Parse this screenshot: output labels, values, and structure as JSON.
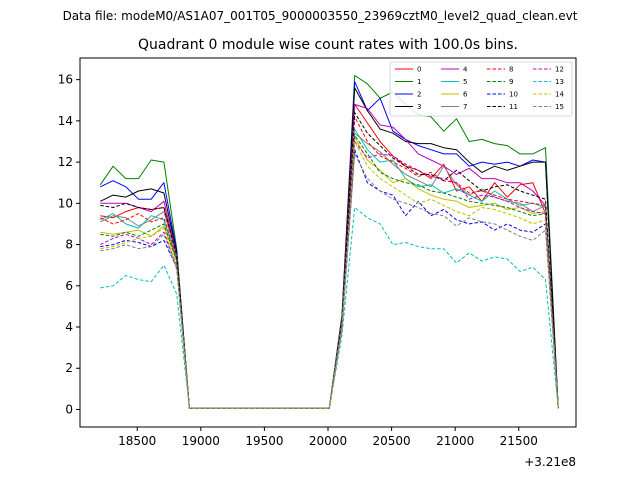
{
  "suptitle": "Data file: modeM0/AS1A07_001T05_9000003550_23969cztM0_level2_quad_clean.evt",
  "chart_data": {
    "type": "line",
    "title": "Quadrant 0 module wise count rates with 100.0s bins.",
    "xlabel": "",
    "ylabel": "",
    "x_offset_label": "+3.21e8",
    "xlim": [
      18050,
      21950
    ],
    "ylim": [
      -0.85,
      17.05
    ],
    "xticks": [
      18500,
      19000,
      19500,
      20000,
      20500,
      21000,
      21500
    ],
    "xtick_labels": [
      "18500",
      "19000",
      "19500",
      "20000",
      "20500",
      "21000",
      "21500"
    ],
    "yticks": [
      0,
      2,
      4,
      6,
      8,
      10,
      12,
      14,
      16
    ],
    "ytick_labels": [
      "0",
      "2",
      "4",
      "6",
      "8",
      "10",
      "12",
      "14",
      "16"
    ],
    "grid": false,
    "legend_position": "top-right",
    "x": [
      18210,
      18310,
      18410,
      18510,
      18610,
      18710,
      18810,
      18910,
      19010,
      19110,
      19210,
      19310,
      19410,
      19510,
      19610,
      19710,
      19810,
      19910,
      20010,
      20110,
      20210,
      20310,
      20410,
      20510,
      20610,
      20710,
      20810,
      20910,
      21010,
      21110,
      21210,
      21310,
      21410,
      21510,
      21610,
      21710,
      21810
    ],
    "series": [
      {
        "name": "0",
        "color": "#ff0000",
        "dash": "solid",
        "values": [
          9.4,
          9.3,
          9.6,
          9.8,
          9.7,
          9.8,
          7.5,
          0.05,
          0.05,
          0.05,
          0.05,
          0.05,
          0.05,
          0.05,
          0.05,
          0.05,
          0.05,
          0.05,
          0.05,
          4.2,
          14.8,
          13.9,
          13.0,
          12.3,
          11.8,
          11.6,
          11.2,
          11.9,
          10.6,
          10.8,
          10.1,
          11.0,
          10.3,
          10.9,
          11.0,
          9.5,
          0.05
        ]
      },
      {
        "name": "1",
        "color": "#008000",
        "dash": "solid",
        "values": [
          10.9,
          11.8,
          11.2,
          11.2,
          12.1,
          12.0,
          7.8,
          0.05,
          0.05,
          0.05,
          0.05,
          0.05,
          0.05,
          0.05,
          0.05,
          0.05,
          0.05,
          0.05,
          0.05,
          4.6,
          16.2,
          15.8,
          15.1,
          15.4,
          14.8,
          14.3,
          14.2,
          13.5,
          14.1,
          13.0,
          13.1,
          12.9,
          12.8,
          12.4,
          12.4,
          12.7,
          0.05
        ]
      },
      {
        "name": "2",
        "color": "#0000ff",
        "dash": "solid",
        "values": [
          10.8,
          11.1,
          10.8,
          10.2,
          10.2,
          11.0,
          7.7,
          0.05,
          0.05,
          0.05,
          0.05,
          0.05,
          0.05,
          0.05,
          0.05,
          0.05,
          0.05,
          0.05,
          0.05,
          4.5,
          15.9,
          14.5,
          15.1,
          13.5,
          13.1,
          12.8,
          12.6,
          12.4,
          12.4,
          11.8,
          12.0,
          11.9,
          12.0,
          11.8,
          12.1,
          12.0,
          0.05
        ]
      },
      {
        "name": "3",
        "color": "#000000",
        "dash": "solid",
        "values": [
          10.1,
          10.4,
          10.3,
          10.6,
          10.7,
          10.5,
          7.6,
          0.05,
          0.05,
          0.05,
          0.05,
          0.05,
          0.05,
          0.05,
          0.05,
          0.05,
          0.05,
          0.05,
          0.05,
          4.5,
          15.6,
          14.5,
          13.6,
          13.4,
          13.0,
          12.9,
          12.9,
          12.7,
          12.6,
          12.0,
          11.5,
          11.8,
          11.6,
          11.8,
          12.0,
          12.0,
          0.05
        ]
      },
      {
        "name": "4",
        "color": "#bf00bf",
        "dash": "solid",
        "values": [
          10.0,
          10.0,
          10.0,
          9.8,
          9.6,
          10.1,
          7.5,
          0.05,
          0.05,
          0.05,
          0.05,
          0.05,
          0.05,
          0.05,
          0.05,
          0.05,
          0.05,
          0.05,
          0.05,
          4.4,
          14.8,
          14.6,
          13.8,
          13.7,
          13.1,
          12.4,
          12.1,
          11.8,
          11.4,
          11.7,
          11.2,
          11.2,
          11.0,
          11.0,
          10.6,
          9.9,
          0.05
        ]
      },
      {
        "name": "5",
        "color": "#00bfbf",
        "dash": "solid",
        "values": [
          9.2,
          9.5,
          9.0,
          8.8,
          9.4,
          9.2,
          7.3,
          0.05,
          0.05,
          0.05,
          0.05,
          0.05,
          0.05,
          0.05,
          0.05,
          0.05,
          0.05,
          0.05,
          0.05,
          4.3,
          13.6,
          12.6,
          12.0,
          12.1,
          11.2,
          10.8,
          10.9,
          10.5,
          10.7,
          10.4,
          10.1,
          10.6,
          10.2,
          9.9,
          10.0,
          9.8,
          0.05
        ]
      },
      {
        "name": "6",
        "color": "#bfbf00",
        "dash": "solid",
        "values": [
          8.6,
          8.5,
          8.6,
          8.7,
          8.4,
          8.9,
          7.2,
          0.05,
          0.05,
          0.05,
          0.05,
          0.05,
          0.05,
          0.05,
          0.05,
          0.05,
          0.05,
          0.05,
          0.05,
          4.2,
          13.2,
          12.1,
          11.6,
          11.0,
          11.2,
          10.7,
          10.4,
          10.2,
          10.1,
          9.8,
          9.9,
          10.0,
          9.7,
          9.8,
          9.5,
          9.6,
          0.05
        ]
      },
      {
        "name": "7",
        "color": "#808080",
        "dash": "solid",
        "values": [
          9.1,
          9.4,
          9.3,
          8.9,
          9.2,
          9.6,
          7.4,
          0.05,
          0.05,
          0.05,
          0.05,
          0.05,
          0.05,
          0.05,
          0.05,
          0.05,
          0.05,
          0.05,
          0.05,
          4.3,
          13.4,
          12.9,
          12.5,
          11.9,
          11.4,
          11.1,
          10.8,
          11.8,
          10.9,
          10.4,
          10.7,
          10.3,
          10.1,
          10.0,
          9.6,
          9.9,
          0.05
        ]
      },
      {
        "name": "8",
        "color": "#ff0000",
        "dash": "dash",
        "values": [
          9.3,
          9.0,
          9.2,
          9.5,
          9.1,
          9.3,
          7.3,
          0.05,
          0.05,
          0.05,
          0.05,
          0.05,
          0.05,
          0.05,
          0.05,
          0.05,
          0.05,
          0.05,
          0.05,
          4.2,
          14.2,
          13.0,
          12.3,
          12.0,
          11.7,
          11.3,
          11.5,
          11.1,
          11.0,
          10.5,
          10.6,
          10.4,
          10.2,
          10.1,
          10.0,
          9.9,
          0.05
        ]
      },
      {
        "name": "9",
        "color": "#008000",
        "dash": "dash",
        "values": [
          8.5,
          8.4,
          8.6,
          8.4,
          8.7,
          9.0,
          7.2,
          0.05,
          0.05,
          0.05,
          0.05,
          0.05,
          0.05,
          0.05,
          0.05,
          0.05,
          0.05,
          0.05,
          0.05,
          4.1,
          13.3,
          12.4,
          11.5,
          11.2,
          11.0,
          10.9,
          10.6,
          10.5,
          10.3,
          10.1,
          10.0,
          9.9,
          9.8,
          9.6,
          9.4,
          9.5,
          0.05
        ]
      },
      {
        "name": "10",
        "color": "#0000ff",
        "dash": "dash",
        "values": [
          7.9,
          8.0,
          8.2,
          8.1,
          7.9,
          8.2,
          6.9,
          0.05,
          0.05,
          0.05,
          0.05,
          0.05,
          0.05,
          0.05,
          0.05,
          0.05,
          0.05,
          0.05,
          0.05,
          4.0,
          12.6,
          11.0,
          10.6,
          10.4,
          9.4,
          10.1,
          9.4,
          9.7,
          9.2,
          9.0,
          9.1,
          8.7,
          9.0,
          8.7,
          8.6,
          9.0,
          0.05
        ]
      },
      {
        "name": "11",
        "color": "#000000",
        "dash": "dash",
        "values": [
          9.9,
          9.8,
          10.0,
          9.8,
          9.7,
          9.8,
          7.5,
          0.05,
          0.05,
          0.05,
          0.05,
          0.05,
          0.05,
          0.05,
          0.05,
          0.05,
          0.05,
          0.05,
          0.05,
          4.3,
          14.4,
          13.4,
          12.8,
          12.2,
          11.8,
          11.4,
          11.4,
          11.1,
          11.6,
          11.1,
          10.6,
          10.8,
          10.9,
          10.6,
          10.4,
          10.2,
          0.05
        ]
      },
      {
        "name": "12",
        "color": "#bf00bf",
        "dash": "dash",
        "values": [
          8.0,
          8.3,
          8.5,
          8.3,
          8.0,
          8.6,
          7.0,
          0.05,
          0.05,
          0.05,
          0.05,
          0.05,
          0.05,
          0.05,
          0.05,
          0.05,
          0.05,
          0.05,
          0.05,
          4.1,
          13.0,
          12.2,
          12.4,
          12.3,
          11.9,
          11.6,
          11.3,
          11.2,
          11.0,
          10.2,
          10.4,
          10.3,
          10.1,
          9.8,
          9.6,
          9.5,
          0.05
        ]
      },
      {
        "name": "13",
        "color": "#00bfbf",
        "dash": "dash",
        "values": [
          5.9,
          6.0,
          6.5,
          6.3,
          6.2,
          7.0,
          5.6,
          0.05,
          0.05,
          0.05,
          0.05,
          0.05,
          0.05,
          0.05,
          0.05,
          0.05,
          0.05,
          0.05,
          0.05,
          3.6,
          9.8,
          9.3,
          9.0,
          8.0,
          8.1,
          7.9,
          7.8,
          7.8,
          7.1,
          7.6,
          7.2,
          7.4,
          7.3,
          6.7,
          6.9,
          6.3,
          0.05
        ]
      },
      {
        "name": "14",
        "color": "#bfbf00",
        "dash": "dash",
        "values": [
          7.8,
          7.9,
          8.1,
          8.3,
          8.4,
          8.8,
          6.9,
          0.05,
          0.05,
          0.05,
          0.05,
          0.05,
          0.05,
          0.05,
          0.05,
          0.05,
          0.05,
          0.05,
          0.05,
          4.0,
          13.0,
          11.8,
          11.2,
          10.8,
          10.4,
          10.0,
          10.2,
          9.9,
          9.6,
          9.4,
          9.8,
          9.7,
          9.5,
          9.3,
          9.0,
          9.2,
          0.05
        ]
      },
      {
        "name": "15",
        "color": "#808080",
        "dash": "dash",
        "values": [
          7.7,
          7.8,
          8.0,
          7.8,
          7.9,
          8.5,
          6.8,
          0.05,
          0.05,
          0.05,
          0.05,
          0.05,
          0.05,
          0.05,
          0.05,
          0.05,
          0.05,
          0.05,
          0.05,
          3.9,
          12.4,
          11.2,
          10.6,
          10.2,
          10.0,
          9.8,
          9.5,
          9.4,
          8.9,
          9.3,
          9.1,
          9.0,
          8.7,
          8.4,
          8.2,
          8.7,
          0.05
        ]
      }
    ]
  }
}
